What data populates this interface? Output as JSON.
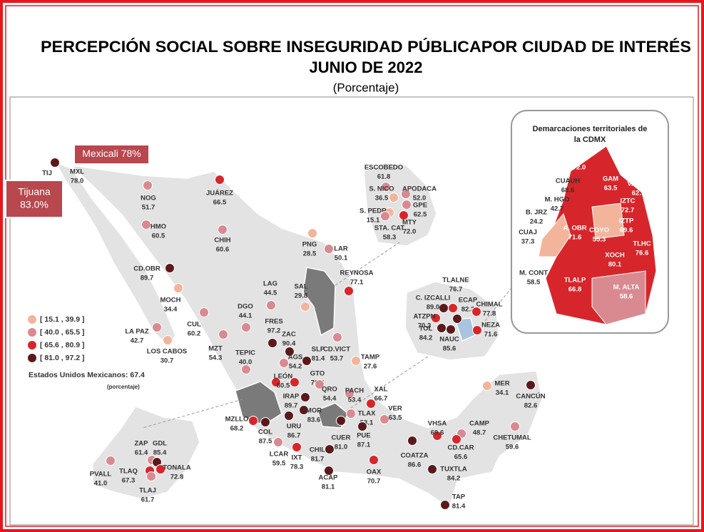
{
  "header": {
    "title": "PERCEPCIÓN SOCIAL SOBRE INSEGURIDAD PÚBLICAPOR CIUDAD DE INTERÉS",
    "date": "JUNIO DE 2022",
    "subtitle": "(Porcentaje)"
  },
  "callouts": [
    {
      "lines": [
        "Mexicali 78%"
      ]
    },
    {
      "lines": [
        "Tijuana",
        "83.0%"
      ]
    }
  ],
  "legend": [
    {
      "label": "[ 15.1 , 39.9 ]",
      "min": 15.1,
      "max": 39.9,
      "color": "#f2b59b"
    },
    {
      "label": "[ 40.0 , 65.5 ]",
      "min": 40.0,
      "max": 65.5,
      "color": "#d98a90"
    },
    {
      "label": "[ 65.6 , 80.9 ]",
      "min": 65.6,
      "max": 80.9,
      "color": "#d7262b"
    },
    {
      "label": "[ 81.0 , 97.2 ]",
      "min": 81.0,
      "max": 97.2,
      "color": "#5a1a1c"
    }
  ],
  "national": {
    "label": "Estados Unidos Mexicanos:  67.4",
    "note": "(porcentaje)"
  },
  "cities": [
    {
      "name": "TIJ",
      "color": "#5a1a1c"
    },
    {
      "name": "MXL",
      "value": 78,
      "value_label": "78.0"
    },
    {
      "name": "NOG",
      "value": 51.7
    },
    {
      "name": "HMO",
      "value": 60.5
    },
    {
      "name": "JUÁREZ",
      "value": 66.5
    },
    {
      "name": "CHIH",
      "value": 60.6
    },
    {
      "name": "PNG",
      "value": 28.5
    },
    {
      "name": "LAR",
      "value": 50.1
    },
    {
      "name": "REYNOSA",
      "value": 77.1
    },
    {
      "name": "CD.OBR",
      "value": 89.7
    },
    {
      "name": "MOCH",
      "value": 34.4
    },
    {
      "name": "SAL",
      "value": 29.8
    },
    {
      "name": "LAG",
      "value": 44.5
    },
    {
      "name": "DGO",
      "value": 44.1
    },
    {
      "name": "CUL",
      "value": 60.2
    },
    {
      "name": "LA PAZ",
      "value": 42.7
    },
    {
      "name": "LOS CABOS",
      "value": 30.7
    },
    {
      "name": "MZT",
      "value": 54.3
    },
    {
      "name": "FRES",
      "value": 97.2
    },
    {
      "name": "ZAC",
      "value": 90.4
    },
    {
      "name": "AGS",
      "value": 54.2
    },
    {
      "name": "TEPIC",
      "value": 40,
      "value_label": "40.0"
    },
    {
      "name": "SLP",
      "value": 81.4
    },
    {
      "name": "CD.VICT",
      "value": 53.7
    },
    {
      "name": "TAMP",
      "value": 27.6
    },
    {
      "name": "LEÓN",
      "value": 80.5
    },
    {
      "name": "GTO",
      "value": 70.8
    },
    {
      "name": "IRAP",
      "value": 89.7
    },
    {
      "name": "QRO",
      "value": 54.4
    },
    {
      "name": "PACH",
      "value": 53.4
    },
    {
      "name": "XAL",
      "value": 66.7
    },
    {
      "name": "VER",
      "value": 63.5
    },
    {
      "name": "MZLLO",
      "value": 68.2
    },
    {
      "name": "COL",
      "value": 87.5
    },
    {
      "name": "MOR",
      "value": 83.6
    },
    {
      "name": "URU",
      "value": 86.7
    },
    {
      "name": "TLAX",
      "value": 53.1
    },
    {
      "name": "CUER",
      "value": 81,
      "value_label": "81.0"
    },
    {
      "name": "PUE",
      "value": 87.1
    },
    {
      "name": "LCAR",
      "value": 59.5
    },
    {
      "name": "IXT",
      "value": 78.3
    },
    {
      "name": "CHIL",
      "value": 81.7
    },
    {
      "name": "ACAP",
      "value": 81.1
    },
    {
      "name": "OAX",
      "value": 70.7
    },
    {
      "name": "COATZA",
      "value": 86.6
    },
    {
      "name": "VHSA",
      "value": 69.6
    },
    {
      "name": "CAMP",
      "value": 48.7
    },
    {
      "name": "CD.CAR",
      "value": 65.6
    },
    {
      "name": "TUXTLA",
      "value": 84.2
    },
    {
      "name": "TAP",
      "value": 81.4
    },
    {
      "name": "MER",
      "value": 34.1
    },
    {
      "name": "CANCÚN",
      "value": 82.6
    },
    {
      "name": "CHETUMAL",
      "value": 59.6
    },
    {
      "name": "ZAP",
      "value": 61.4
    },
    {
      "name": "GDL",
      "value": 85.4
    },
    {
      "name": "TONALA",
      "value": 72.8
    },
    {
      "name": "TLAQ",
      "value": 67.3
    },
    {
      "name": "TLAJ",
      "value": 61.7
    },
    {
      "name": "PVALL",
      "value": 41,
      "value_label": "41.0"
    },
    {
      "name": "ESCOBEDO",
      "value": 61.8
    },
    {
      "name": "S. NICO",
      "value": 36.5
    },
    {
      "name": "APODACA",
      "value": 52,
      "value_label": "52.0"
    },
    {
      "name": "GPE",
      "value": 62.5
    },
    {
      "name": "S. PEDR",
      "value": 15.1
    },
    {
      "name": "MTY",
      "value": 72,
      "value_label": "72.0"
    },
    {
      "name": "STA. CAT",
      "value": 58.3
    },
    {
      "name": "TLALNE",
      "value": 76.7
    },
    {
      "name": "C. IZCALLI",
      "value": 89,
      "value_label": "89.0"
    },
    {
      "name": "ATZPN",
      "value": 70.3
    },
    {
      "name": "ECAP",
      "value": 82.3
    },
    {
      "name": "CHIMAL",
      "value": 77.8
    },
    {
      "name": "NEZA",
      "value": 71.6
    },
    {
      "name": "TOL",
      "value": 84.2
    },
    {
      "name": "NAUC",
      "value": 85.6
    }
  ],
  "cdmx": {
    "title": [
      "Demarcaciones territoriales de",
      "la CDMX"
    ],
    "areas": [
      {
        "name": "AZCAP",
        "value": 72,
        "value_label": "72.0"
      },
      {
        "name": "GAM",
        "value": 63.5
      },
      {
        "name": "CUAUH",
        "value": 68.6
      },
      {
        "name": "V. CAR",
        "value": 62,
        "value_label": "62.0"
      },
      {
        "name": "M. HGO",
        "value": 42.7
      },
      {
        "name": "IZTC",
        "value": 72.7
      },
      {
        "name": "B. JRZ",
        "value": 24.2
      },
      {
        "name": "A. OBR",
        "value": 71.6
      },
      {
        "name": "COYO",
        "value": 55.3
      },
      {
        "name": "IZTP",
        "value": 69.6
      },
      {
        "name": "CUAJ",
        "value": 37.3
      },
      {
        "name": "TLHC",
        "value": 76.6
      },
      {
        "name": "XOCH",
        "value": 80.1
      },
      {
        "name": "M. CONT",
        "value": 58.5
      },
      {
        "name": "TLALP",
        "value": 66.8
      },
      {
        "name": "M. ALTA",
        "value": 58.6
      }
    ]
  }
}
